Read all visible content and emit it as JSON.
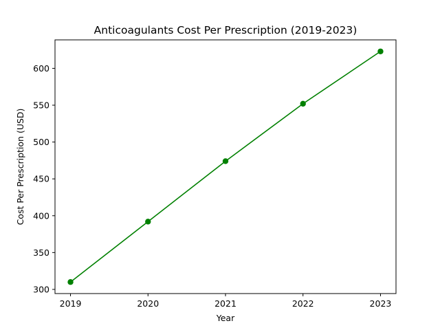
{
  "chart_data": {
    "type": "line",
    "title": "Anticoagulants Cost Per Prescription (2019-2023)",
    "xlabel": "Year",
    "ylabel": "Cost Per Prescription (USD)",
    "x": [
      "2019",
      "2020",
      "2021",
      "2022",
      "2023"
    ],
    "series": [
      {
        "values": [
          310,
          392,
          474,
          552,
          623
        ],
        "color": "#008000",
        "marker": "circle"
      }
    ],
    "yticks": [
      300,
      350,
      400,
      450,
      500,
      550,
      600
    ],
    "ylim": [
      294.35,
      638.65
    ],
    "grid": false,
    "legend": "none"
  }
}
